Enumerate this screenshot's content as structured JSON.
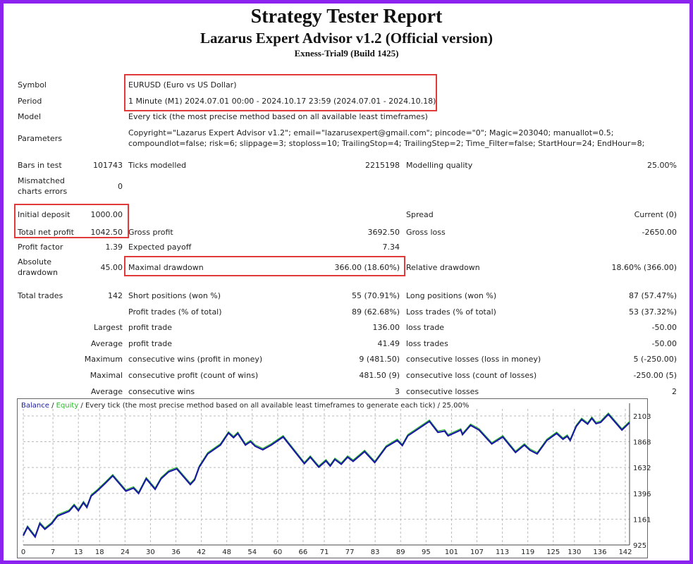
{
  "title": "Strategy Tester Report",
  "subtitle": "Lazarus Expert Advisor v1.2 (Official version)",
  "server": "Exness-Trial9 (Build 1425)",
  "info": {
    "symbol_label": "Symbol",
    "symbol": "EURUSD (Euro vs US Dollar)",
    "period_label": "Period",
    "period": "1 Minute (M1) 2024.07.01 00:00 - 2024.10.17 23:59 (2024.07.01 - 2024.10.18)",
    "model_label": "Model",
    "model": "Every tick (the most precise method based on all available least timeframes)",
    "parameters_label": "Parameters",
    "parameters_line1": "Copyright=\"Lazarus Expert Advisor v1.2\"; email=\"lazarusexpert@gmail.com\"; pincode=\"0\"; Magic=203040; manuallot=0.5;",
    "parameters_line2": "compoundlot=false; risk=6; slippage=3; stoploss=10; TrailingStop=4; TrailingStep=2; Time_Filter=false; StartHour=24; EndHour=8;"
  },
  "rows": [
    {
      "top": 223,
      "c": [
        [
          "Bars in test",
          "101743"
        ],
        [
          "Ticks modelled",
          "2215198"
        ],
        [
          "Modelling quality",
          "25.00%"
        ]
      ]
    },
    {
      "top": 318,
      "c": [
        [
          "Total net profit",
          "1042.50"
        ],
        [
          "Gross profit",
          "3692.50"
        ],
        [
          "Gross loss",
          "-2650.00"
        ]
      ]
    },
    {
      "top": 339,
      "c": [
        [
          "Profit factor",
          "1.39"
        ],
        [
          "Expected payoff",
          "7.34"
        ],
        [
          "",
          ""
        ]
      ]
    },
    {
      "top": 408,
      "c": [
        [
          "Total trades",
          "142"
        ],
        [
          "Short positions (won %)",
          "55 (70.91%)"
        ],
        [
          "Long positions (won %)",
          "87 (57.47%)"
        ]
      ]
    },
    {
      "top": 431,
      "c": [
        [
          "",
          ""
        ],
        [
          "Profit trades (% of total)",
          "89 (62.68%)"
        ],
        [
          "Loss trades (% of total)",
          "53 (37.32%)"
        ]
      ]
    },
    {
      "top": 453,
      "c": [
        [
          "Largest",
          ""
        ],
        [
          "profit trade",
          "136.00"
        ],
        [
          "loss trade",
          "-50.00"
        ]
      ]
    },
    {
      "top": 476,
      "c": [
        [
          "Average",
          ""
        ],
        [
          "profit trade",
          "41.49"
        ],
        [
          "loss trades",
          "-50.00"
        ]
      ]
    },
    {
      "top": 498,
      "c": [
        [
          "Maximum",
          ""
        ],
        [
          "consecutive wins (profit in money)",
          "9 (481.50)"
        ],
        [
          "consecutive losses (loss in money)",
          "5 (-250.00)"
        ]
      ]
    },
    {
      "top": 521,
      "c": [
        [
          "Maximal",
          ""
        ],
        [
          "consecutive profit (count of wins)",
          "481.50 (9)"
        ],
        [
          "consecutive loss (count of losses)",
          "-250.00 (5)"
        ]
      ]
    },
    {
      "top": 544,
      "c": [
        [
          "Average",
          ""
        ],
        [
          "consecutive wins",
          "3"
        ],
        [
          "consecutive losses",
          "2"
        ]
      ]
    }
  ],
  "mismatched": {
    "label_1": "Mismatched",
    "label_2": "charts errors",
    "value": "0"
  },
  "deposit": {
    "label": "Initial deposit",
    "value": "1000.00",
    "spread_label": "Spread",
    "spread": "Current (0)"
  },
  "drawdown": {
    "abs_label_1": "Absolute",
    "abs_label_2": "drawdown",
    "abs_value": "45.00",
    "max_label": "Maximal drawdown",
    "max_value": "366.00 (18.60%)",
    "rel_label": "Relative drawdown",
    "rel_value": "18.60% (366.00)"
  },
  "chart_data": {
    "type": "line",
    "legend": {
      "balance": "Balance",
      "sep1": " / ",
      "equity": "Equity",
      "rest": " / Every tick (the most precise method based on all available least timeframes to generate each tick) / 25.00%"
    },
    "colors": {
      "balance": "#1a1aa0",
      "equity": "#22bb22",
      "grid": "#bbbbbb",
      "highlight": "#e03a3a",
      "border": "#8b22f0"
    },
    "xticks": [
      "0",
      "7",
      "13",
      "18",
      "24",
      "30",
      "36",
      "42",
      "48",
      "54",
      "60",
      "66",
      "71",
      "77",
      "83",
      "89",
      "95",
      "101",
      "107",
      "113",
      "119",
      "125",
      "130",
      "136",
      "142"
    ],
    "yticks": [
      "925",
      "1161",
      "1396",
      "1632",
      "1868",
      "2103"
    ],
    "xlim": [
      0,
      143
    ],
    "ylim": [
      925,
      2130
    ],
    "grid": true,
    "series": [
      {
        "name": "Balance",
        "x": [
          0,
          1,
          2.8,
          3.9,
          5.1,
          6.7,
          8.1,
          10.8,
          12,
          13,
          14.2,
          15,
          16,
          17.6,
          19.3,
          21.1,
          24.2,
          26,
          27.2,
          29,
          31.1,
          32.5,
          34.3,
          36.2,
          39.4,
          40.4,
          41.5,
          43.5,
          46.5,
          48.4,
          49.6,
          50.6,
          52.4,
          53.6,
          54.7,
          56.5,
          58.5,
          61.3,
          66.3,
          67.7,
          69.7,
          71.4,
          72.4,
          73.5,
          75,
          76.5,
          77.8,
          80.5,
          82.9,
          85.6,
          88.2,
          89.4,
          90.7,
          95.8,
          97.8,
          99.4,
          100.2,
          103.2,
          103.6,
          105.5,
          107.5,
          110.5,
          113.1,
          116.1,
          118.2,
          119.5,
          121.2,
          123.5,
          125.8,
          127.3,
          128.3,
          129,
          130.4,
          131.7,
          133.1,
          134.1,
          135.1,
          136.2,
          138,
          141.2,
          143
        ],
        "y": [
          1010,
          1088,
          999,
          1120,
          1069,
          1120,
          1190,
          1233,
          1286,
          1239,
          1311,
          1269,
          1371,
          1424,
          1487,
          1557,
          1417,
          1445,
          1396,
          1530,
          1434,
          1530,
          1593,
          1621,
          1477,
          1519,
          1636,
          1757,
          1838,
          1948,
          1905,
          1944,
          1838,
          1869,
          1827,
          1795,
          1838,
          1912,
          1668,
          1727,
          1636,
          1693,
          1646,
          1706,
          1663,
          1727,
          1689,
          1778,
          1678,
          1820,
          1880,
          1833,
          1922,
          2054,
          1954,
          1965,
          1922,
          1975,
          1933,
          2018,
          1975,
          1848,
          1912,
          1770,
          1838,
          1791,
          1757,
          1880,
          1944,
          1891,
          1918,
          1880,
          2007,
          2071,
          2029,
          2082,
          2033,
          2046,
          2118,
          1975,
          2042
        ]
      }
    ]
  }
}
